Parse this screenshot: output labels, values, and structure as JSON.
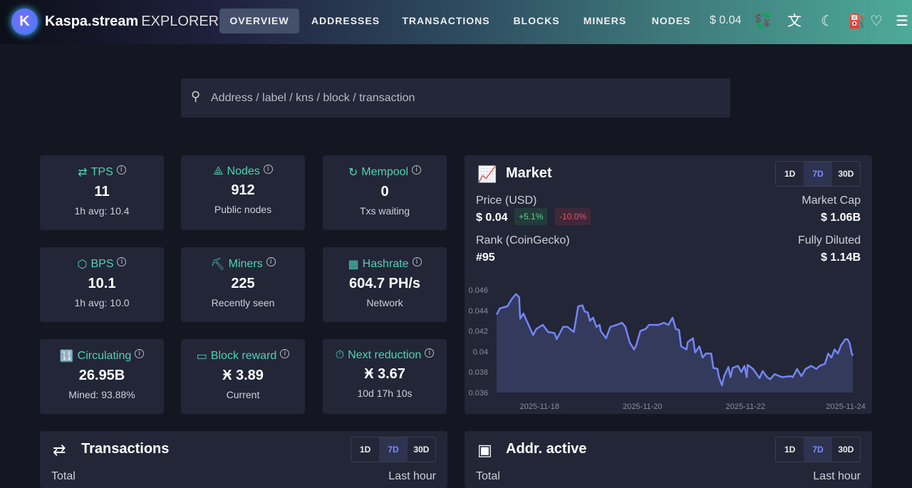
{
  "header": {
    "brand": "Kaspa.stream",
    "brand_suffix": "EXPLORER",
    "logo_letter": "K",
    "nav": [
      "OVERVIEW",
      "ADDRESSES",
      "TRANSACTIONS",
      "BLOCKS",
      "MINERS",
      "NODES"
    ],
    "active_nav": "OVERVIEW",
    "price": "$ 0.04",
    "icons": [
      "currency-exchange-icon",
      "translate-icon",
      "theme-toggle-icon",
      "fuel-icon",
      "heart-icon",
      "menu-icon"
    ]
  },
  "search": {
    "placeholder": "Address / label / kns / block / transaction"
  },
  "stats": [
    {
      "label": "TPS",
      "value": "11",
      "sub": "1h avg: 10.4",
      "icon": "arrows-exchange-icon"
    },
    {
      "label": "Nodes",
      "value": "912",
      "sub": "Public nodes",
      "icon": "network-icon"
    },
    {
      "label": "Mempool",
      "value": "0",
      "sub": "Txs waiting",
      "icon": "refresh-clock-icon"
    },
    {
      "label": "BPS",
      "value": "10.1",
      "sub": "1h avg: 10.0",
      "icon": "cube-icon"
    },
    {
      "label": "Miners",
      "value": "225",
      "sub": "Recently seen",
      "icon": "pickaxe-icon"
    },
    {
      "label": "Hashrate",
      "value": "604.7 PH/s",
      "sub": "Network",
      "icon": "chip-icon"
    },
    {
      "label": "Circulating",
      "value": "26.95B",
      "sub": "Mined: 93.88%",
      "icon": "counter-icon"
    },
    {
      "label": "Block reward",
      "value": "Ӿ 3.89",
      "sub": "Current",
      "icon": "cash-icon"
    },
    {
      "label": "Next reduction",
      "value": "Ӿ 3.67",
      "sub": "10d 17h 10s",
      "icon": "stopwatch-icon"
    }
  ],
  "ranges": [
    "1D",
    "7D",
    "30D"
  ],
  "selected_range": "7D",
  "market": {
    "title": "Market",
    "price_label": "Price (USD)",
    "price": "$ 0.04",
    "change_1": "+5.1%",
    "change_2": "-10.0%",
    "rank_label": "Rank (CoinGecko)",
    "rank": "#95",
    "mcap_label": "Market Cap",
    "mcap": "$ 1.06B",
    "fdv_label": "Fully Diluted",
    "fdv": "$ 1.14B",
    "colors": {
      "up": "#5fd08f",
      "down": "#e0506a",
      "line": "#7485f7",
      "fill": "#343a5c"
    }
  },
  "transactions_panel": {
    "title": "Transactions",
    "left_label": "Total",
    "right_label": "Last hour"
  },
  "addr_panel": {
    "title": "Addr. active",
    "left_label": "Total",
    "right_label": "Last hour"
  },
  "chart_data": {
    "type": "area",
    "title": "",
    "xlabel": "",
    "ylabel": "",
    "ylim": [
      0.036,
      0.046
    ],
    "yticks": [
      "0.046",
      "0.044",
      "0.042",
      "0.04",
      "0.038",
      "0.036"
    ],
    "xticks": [
      "2025-11-18",
      "2025-11-20",
      "2025-11-22",
      "2025-11-24"
    ],
    "grid": false,
    "x": [
      "2025-11-17 04:00",
      "2025-11-17 05:30",
      "2025-11-17 09:00",
      "2025-11-17 11:00",
      "2025-11-17 13:00",
      "2025-11-17 14:30",
      "2025-11-17 15:00",
      "2025-11-17 16:30",
      "2025-11-17 18:00",
      "2025-11-17 19:30",
      "2025-11-17 21:00",
      "2025-11-17 22:30",
      "2025-11-18 01:30",
      "2025-11-18 04:00",
      "2025-11-18 07:00",
      "2025-11-18 08:00",
      "2025-11-18 11:00",
      "2025-11-18 13:00",
      "2025-11-18 16:00",
      "2025-11-18 18:00",
      "2025-11-18 20:00",
      "2025-11-18 21:00",
      "2025-11-18 22:30",
      "2025-11-18 23:30",
      "2025-11-19 01:00",
      "2025-11-19 02:30",
      "2025-11-19 04:00",
      "2025-11-19 04:30",
      "2025-11-19 07:00",
      "2025-11-19 09:00",
      "2025-11-19 12:00",
      "2025-11-19 14:30",
      "2025-11-19 16:00",
      "2025-11-19 18:00",
      "2025-11-19 20:00",
      "2025-11-19 21:00",
      "2025-11-19 23:00",
      "2025-11-20 01:30",
      "2025-11-20 03:00",
      "2025-11-20 07:30",
      "2025-11-20 10:00",
      "2025-11-20 12:00",
      "2025-11-20 14:00",
      "2025-11-20 15:30",
      "2025-11-20 17:00",
      "2025-11-20 18:00",
      "2025-11-20 20:30",
      "2025-11-20 21:00",
      "2025-11-20 23:30",
      "2025-11-21 00:30",
      "2025-11-21 02:30",
      "2025-11-21 04:00",
      "2025-11-21 05:30",
      "2025-11-21 08:00",
      "2025-11-21 09:00",
      "2025-11-21 11:00",
      "2025-11-21 11:30",
      "2025-11-21 13:00",
      "2025-11-21 14:00",
      "2025-11-21 16:00",
      "2025-11-21 17:00",
      "2025-11-21 18:00",
      "2025-11-21 20:30",
      "2025-11-21 22:00",
      "2025-11-21 23:30",
      "2025-11-22 00:30",
      "2025-11-22 01:00",
      "2025-11-22 03:30",
      "2025-11-22 06:30",
      "2025-11-22 08:00",
      "2025-11-22 10:00",
      "2025-11-22 11:30",
      "2025-11-22 13:30",
      "2025-11-22 17:00",
      "2025-11-22 21:00",
      "2025-11-22 22:00",
      "2025-11-23 00:00",
      "2025-11-23 02:00",
      "2025-11-23 04:00",
      "2025-11-23 06:30",
      "2025-11-23 09:00",
      "2025-11-23 10:30",
      "2025-11-23 13:00",
      "2025-11-23 14:30",
      "2025-11-23 16:00",
      "2025-11-23 17:30",
      "2025-11-23 19:00",
      "2025-11-23 20:30",
      "2025-11-23 22:30",
      "2025-11-23 23:30",
      "2025-11-24 00:30",
      "2025-11-24 01:30",
      "2025-11-24 02:00"
    ],
    "values": [
      0.0436,
      0.0442,
      0.0444,
      0.0451,
      0.0456,
      0.0453,
      0.0432,
      0.0437,
      0.043,
      0.0423,
      0.0416,
      0.0422,
      0.0426,
      0.0419,
      0.0418,
      0.0412,
      0.0424,
      0.0424,
      0.0419,
      0.0444,
      0.0445,
      0.0439,
      0.0438,
      0.043,
      0.0433,
      0.0424,
      0.0426,
      0.042,
      0.0413,
      0.0424,
      0.0426,
      0.0428,
      0.0424,
      0.0409,
      0.0402,
      0.0406,
      0.042,
      0.0422,
      0.0426,
      0.0426,
      0.0428,
      0.0426,
      0.0433,
      0.0422,
      0.0421,
      0.0405,
      0.0402,
      0.0409,
      0.0413,
      0.0399,
      0.0405,
      0.0394,
      0.0398,
      0.0398,
      0.0384,
      0.0383,
      0.0376,
      0.0367,
      0.0376,
      0.0385,
      0.0375,
      0.0384,
      0.0386,
      0.038,
      0.0386,
      0.0375,
      0.0387,
      0.0383,
      0.0374,
      0.0381,
      0.0375,
      0.0373,
      0.0378,
      0.0375,
      0.0376,
      0.0375,
      0.0383,
      0.0376,
      0.0383,
      0.0386,
      0.0383,
      0.0386,
      0.0388,
      0.0398,
      0.0394,
      0.0402,
      0.0398,
      0.0406,
      0.0412,
      0.0412,
      0.0408,
      0.0398,
      0.0396
    ]
  }
}
